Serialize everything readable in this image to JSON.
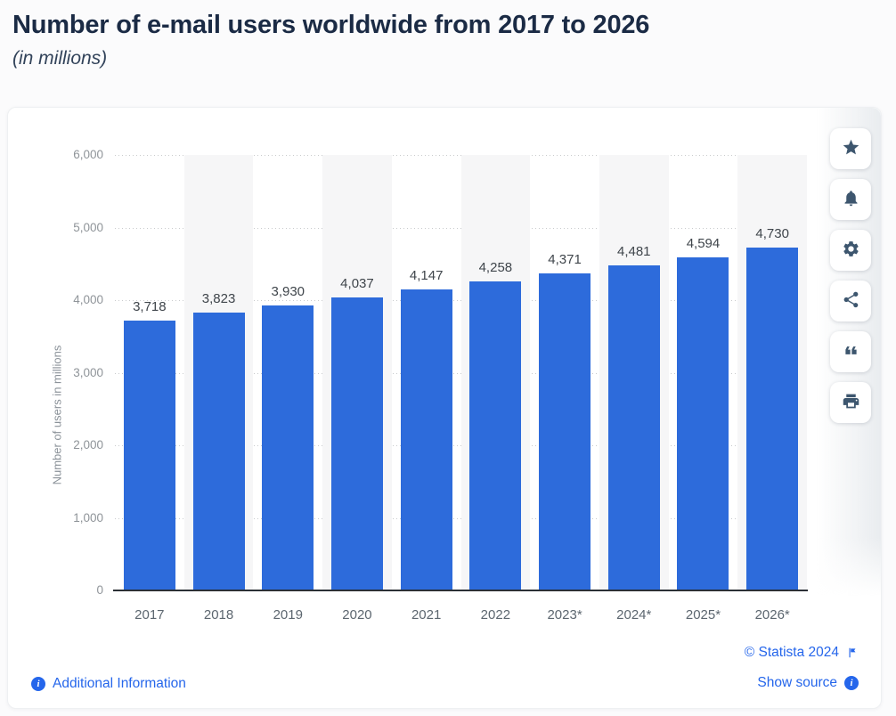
{
  "page": {
    "title": "Number of e-mail users worldwide from 2017 to 2026",
    "subtitle": "(in millions)"
  },
  "chart_data": {
    "type": "bar",
    "title": "Number of e-mail users worldwide from 2017 to 2026",
    "subtitle": "(in millions)",
    "categories": [
      "2017",
      "2018",
      "2019",
      "2020",
      "2021",
      "2022",
      "2023*",
      "2024*",
      "2025*",
      "2026*"
    ],
    "values": [
      3718,
      3823,
      3930,
      4037,
      4147,
      4258,
      4371,
      4481,
      4594,
      4730
    ],
    "value_labels": [
      "3,718",
      "3,823",
      "3,930",
      "4,037",
      "4,147",
      "4,258",
      "4,371",
      "4,481",
      "4,594",
      "4,730"
    ],
    "xlabel": "",
    "ylabel": "Number of users in millions",
    "ylim": [
      0,
      6000
    ],
    "yticks": [
      0,
      1000,
      2000,
      3000,
      4000,
      5000,
      6000
    ],
    "ytick_labels": [
      "0",
      "1,000",
      "2,000",
      "3,000",
      "4,000",
      "5,000",
      "6,000"
    ],
    "grid": "horizontal-dotted",
    "legend": "none",
    "colors": {
      "bar": "#2d6bdb",
      "stripe": "#f6f6f7",
      "gridline": "#c9cbcd",
      "baseline": "#2b3036",
      "data_label": "#3f454b",
      "tick_label": "#8f9499"
    }
  },
  "toolbar": {
    "buttons": [
      {
        "name": "favorite",
        "icon": "star-icon"
      },
      {
        "name": "set alert",
        "icon": "bell-icon"
      },
      {
        "name": "settings",
        "icon": "gear-icon"
      },
      {
        "name": "share",
        "icon": "share-icon"
      },
      {
        "name": "cite",
        "icon": "quote-icon"
      },
      {
        "name": "print",
        "icon": "printer-icon"
      }
    ]
  },
  "footer": {
    "additional_info_label": "Additional Information",
    "copyright": "© Statista 2024",
    "show_source_label": "Show source",
    "link_color": "#2566eb"
  }
}
